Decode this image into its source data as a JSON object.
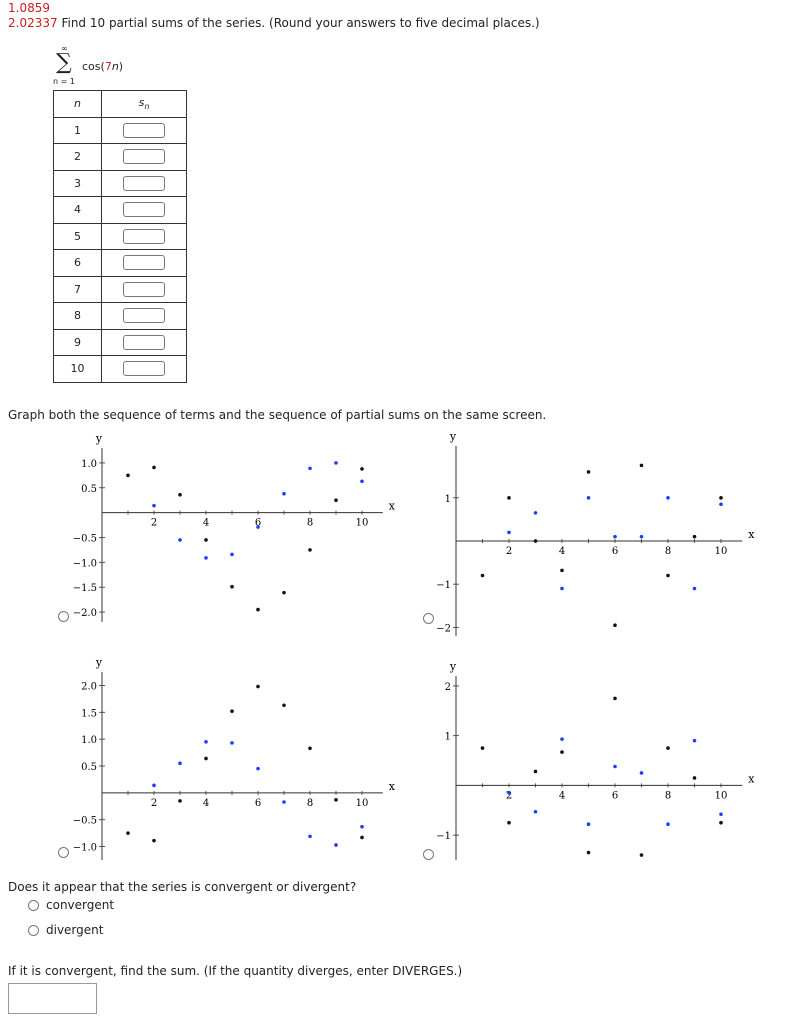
{
  "header": {
    "line1": "1.0859",
    "line2_value": "2.02337",
    "line2_text": "Find 10 partial sums of the series. (Round your answers to five decimal places.)"
  },
  "series": {
    "top": "∞",
    "sigma": "∑",
    "bottom": "n = 1",
    "term_prefix": "cos(",
    "term_red": "7",
    "term_var": "n",
    "term_suffix": ")"
  },
  "table": {
    "col_n": "n",
    "col_s": "s",
    "col_s_sub": "n",
    "rows": [
      "1",
      "2",
      "3",
      "4",
      "5",
      "6",
      "7",
      "8",
      "9",
      "10"
    ]
  },
  "graph_prompt": "Graph both the sequence of terms and the sequence of partial sums on the same screen.",
  "colors": {
    "terms": "#1e3cff",
    "sums": "#111111",
    "red": "#c81e1e"
  },
  "chart_data": [
    {
      "type": "scatter",
      "xlabel": "x",
      "ylabel": "y",
      "xlim": [
        0,
        10.8
      ],
      "ylim": [
        -2.2,
        1.3
      ],
      "xticks": [
        2,
        4,
        6,
        8,
        10
      ],
      "yticks": [
        1.0,
        0.5,
        -0.5,
        -1.0,
        -1.5,
        -2.0
      ],
      "ytick_labels": [
        "1.0",
        "0.5",
        "−0.5",
        "−1.0",
        "−1.5",
        "−2.0"
      ],
      "series": [
        {
          "color": "#1e3cff",
          "x": [
            2,
            3,
            4,
            5,
            6,
            7,
            8,
            9,
            10
          ],
          "y": [
            0.14,
            -0.55,
            -0.91,
            -0.84,
            -0.29,
            0.38,
            0.89,
            1.0,
            0.63
          ]
        },
        {
          "color": "#111111",
          "x": [
            1,
            2,
            3,
            4,
            5,
            6,
            7,
            8,
            9,
            10
          ],
          "y": [
            0.75,
            0.91,
            0.36,
            -0.55,
            -1.49,
            -1.95,
            -1.61,
            -0.75,
            0.25,
            0.88
          ]
        }
      ]
    },
    {
      "type": "scatter",
      "xlabel": "x",
      "ylabel": "y",
      "xlim": [
        0,
        10.8
      ],
      "ylim": [
        -2.2,
        2.2
      ],
      "xticks": [
        2,
        4,
        6,
        8,
        10
      ],
      "yticks": [
        1,
        -1,
        -2
      ],
      "ytick_labels": [
        "1",
        "−1",
        "−2"
      ],
      "series": [
        {
          "color": "#1e3cff",
          "x": [
            2,
            3,
            4,
            5,
            6,
            7,
            8,
            9,
            10
          ],
          "y": [
            0.2,
            0.65,
            -1.1,
            1.0,
            0.1,
            0.1,
            1.0,
            -1.1,
            0.85
          ]
        },
        {
          "color": "#111111",
          "x": [
            1,
            2,
            3,
            4,
            5,
            6,
            7,
            8,
            9,
            10
          ],
          "y": [
            -0.8,
            1.0,
            0.0,
            -0.68,
            1.6,
            -1.95,
            1.75,
            -0.8,
            0.1,
            1.0
          ]
        }
      ]
    },
    {
      "type": "scatter",
      "xlabel": "x",
      "ylabel": "y",
      "xlim": [
        0,
        10.8
      ],
      "ylim": [
        -1.25,
        2.25
      ],
      "xticks": [
        2,
        4,
        6,
        8,
        10
      ],
      "yticks": [
        2.0,
        1.5,
        1.0,
        0.5,
        -0.5,
        -1.0
      ],
      "ytick_labels": [
        "2.0",
        "1.5",
        "1.0",
        "0.5",
        "−0.5",
        "−1.0"
      ],
      "series": [
        {
          "color": "#1e3cff",
          "x": [
            2,
            3,
            4,
            5,
            6,
            7,
            8,
            9,
            10
          ],
          "y": [
            0.14,
            0.55,
            0.95,
            0.93,
            0.45,
            -0.17,
            -0.81,
            -0.97,
            -0.63
          ]
        },
        {
          "color": "#111111",
          "x": [
            1,
            2,
            3,
            4,
            5,
            6,
            7,
            8,
            9,
            10
          ],
          "y": [
            -0.75,
            -0.89,
            -0.15,
            0.64,
            1.52,
            1.98,
            1.63,
            0.83,
            -0.13,
            -0.83
          ]
        }
      ]
    },
    {
      "type": "scatter",
      "xlabel": "x",
      "ylabel": "y",
      "xlim": [
        0,
        10.8
      ],
      "ylim": [
        -1.5,
        2.2
      ],
      "xticks": [
        2,
        4,
        6,
        8,
        10
      ],
      "yticks": [
        2,
        1,
        -1
      ],
      "ytick_labels": [
        "2",
        "1",
        "−1"
      ],
      "series": [
        {
          "color": "#1e3cff",
          "x": [
            2,
            3,
            4,
            5,
            6,
            7,
            8,
            9,
            10
          ],
          "y": [
            -0.15,
            -0.53,
            0.93,
            -0.78,
            0.38,
            0.25,
            -0.78,
            0.9,
            -0.58
          ]
        },
        {
          "color": "#111111",
          "x": [
            1,
            2,
            3,
            4,
            5,
            6,
            7,
            8,
            9,
            10
          ],
          "y": [
            0.75,
            -0.75,
            0.28,
            0.67,
            -1.35,
            1.75,
            -1.4,
            0.75,
            0.15,
            -0.75
          ]
        }
      ]
    }
  ],
  "question": "Does it appear that the series is convergent or divergent?",
  "options": [
    "convergent",
    "divergent"
  ],
  "final_prompt": "If it is convergent, find the sum. (If the quantity diverges, enter DIVERGES.)"
}
